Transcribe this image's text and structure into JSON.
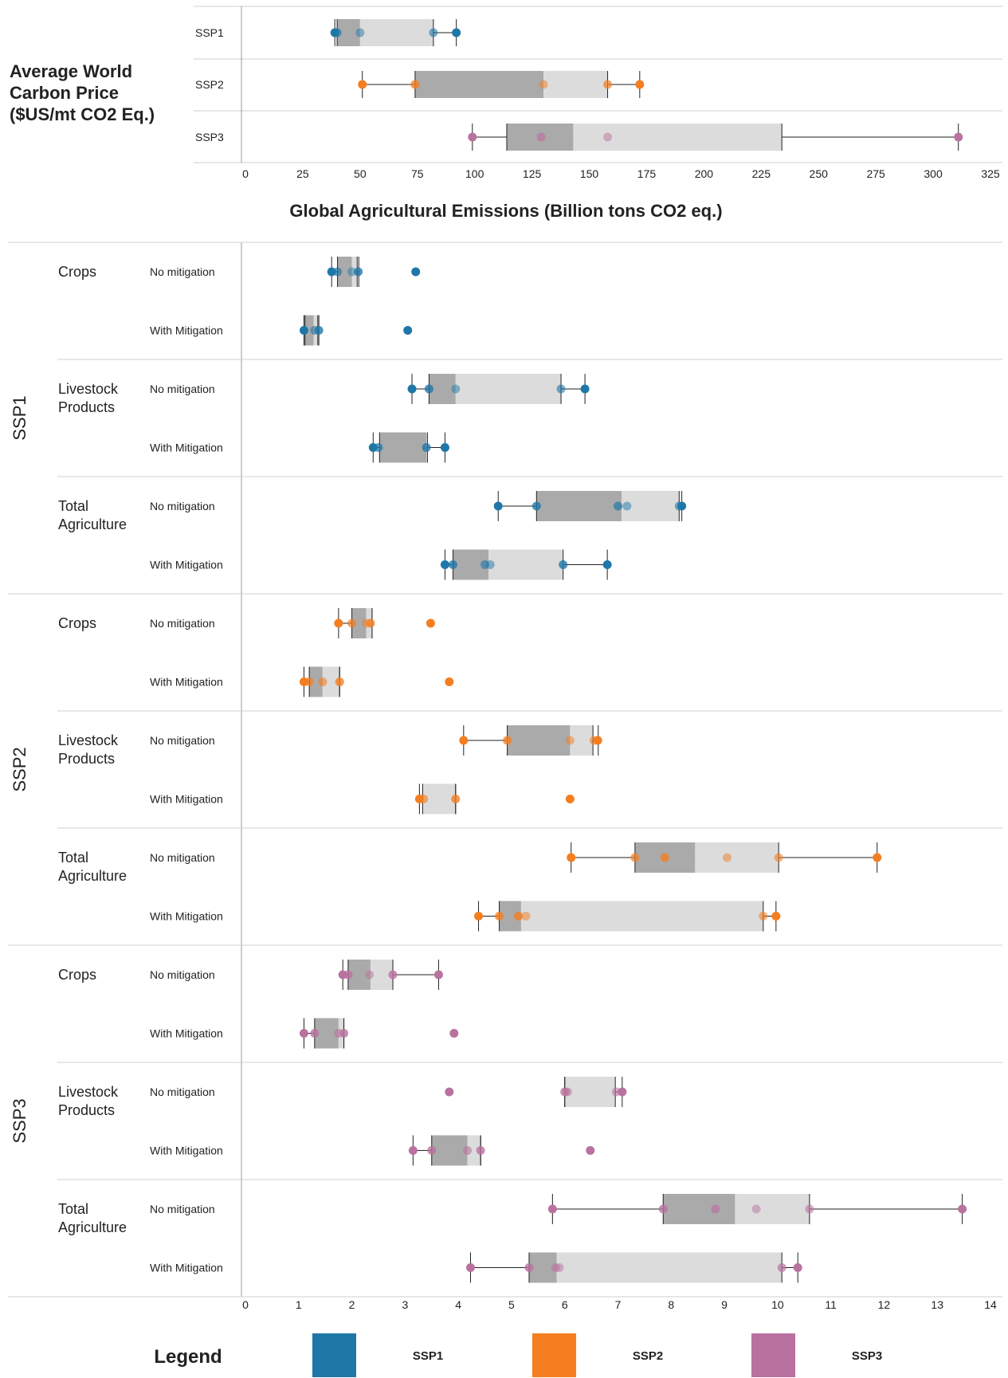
{
  "colors": {
    "SSP1": "#1f77a8",
    "SSP2": "#f47e20",
    "SSP3": "#b9729f"
  },
  "legend": {
    "title": "Legend",
    "items": [
      {
        "label": "SSP1",
        "color": "#1f77a8"
      },
      {
        "label": "SSP2",
        "color": "#f47e20"
      },
      {
        "label": "SSP3",
        "color": "#b9729f"
      }
    ]
  },
  "chart_data": [
    {
      "type": "boxplot",
      "title": "Average World Carbon Price ($US/mt CO2 Eq.)",
      "xlim": [
        0,
        325
      ],
      "xticks": [
        0,
        25,
        50,
        75,
        100,
        125,
        150,
        175,
        200,
        225,
        250,
        275,
        300,
        325
      ],
      "grid": false,
      "rows": [
        {
          "label": "SSP1",
          "series": "SSP1",
          "whisker": [
            39,
            92
          ],
          "q1": 40,
          "median": 50,
          "q3": 82,
          "points": [
            [
              39,
              1
            ],
            [
              40,
              0.7
            ],
            [
              50,
              0.5
            ],
            [
              82,
              0.6
            ],
            [
              92,
              1
            ]
          ]
        },
        {
          "label": "SSP2",
          "series": "SSP2",
          "whisker": [
            51,
            172
          ],
          "q1": 74,
          "median": 130,
          "q3": 158,
          "points": [
            [
              51,
              1
            ],
            [
              74,
              0.8
            ],
            [
              130,
              0.5
            ],
            [
              158,
              0.7
            ],
            [
              172,
              1
            ]
          ]
        },
        {
          "label": "SSP3",
          "series": "SSP3",
          "whisker": [
            99,
            311
          ],
          "q1": 114,
          "median": 143,
          "q3": 234,
          "points": [
            [
              99,
              1
            ],
            [
              129,
              0.7
            ],
            [
              158,
              0.5
            ],
            [
              311,
              1
            ]
          ]
        }
      ]
    },
    {
      "type": "boxplot",
      "title": "Global Agricultural Emissions (Billion tons CO2 eq.)",
      "xlim": [
        0,
        14
      ],
      "xticks": [
        0,
        1,
        2,
        3,
        4,
        5,
        6,
        7,
        8,
        9,
        10,
        11,
        12,
        13,
        14
      ],
      "grid": false,
      "groups": [
        {
          "ssp": "SSP1",
          "categories": [
            {
              "name": "Crops",
              "rows": [
                {
                  "label": "No mitigation",
                  "whisker": [
                    1.62,
                    2.13
                  ],
                  "q1": 1.73,
                  "median": 2.0,
                  "q3": 2.1,
                  "points": [
                    [
                      1.62,
                      1
                    ],
                    [
                      1.73,
                      0.7
                    ],
                    [
                      2.0,
                      0.5
                    ],
                    [
                      2.12,
                      0.8
                    ],
                    [
                      3.2,
                      1
                    ]
                  ]
                },
                {
                  "label": "With Mitigation",
                  "whisker": [
                    1.1,
                    1.38
                  ],
                  "q1": 1.12,
                  "median": 1.28,
                  "q3": 1.36,
                  "points": [
                    [
                      1.1,
                      1
                    ],
                    [
                      1.3,
                      0.6
                    ],
                    [
                      1.38,
                      0.8
                    ],
                    [
                      3.05,
                      1
                    ]
                  ]
                }
              ]
            },
            {
              "name": "Livestock Products",
              "rows": [
                {
                  "label": "No mitigation",
                  "whisker": [
                    3.13,
                    6.38
                  ],
                  "q1": 3.45,
                  "median": 3.95,
                  "q3": 5.93,
                  "points": [
                    [
                      3.13,
                      1
                    ],
                    [
                      3.45,
                      0.8
                    ],
                    [
                      3.95,
                      0.5
                    ],
                    [
                      5.93,
                      0.6
                    ],
                    [
                      6.38,
                      1
                    ]
                  ]
                },
                {
                  "label": "With Mitigation",
                  "whisker": [
                    2.4,
                    3.75
                  ],
                  "q1": 2.52,
                  "median": 3.4,
                  "q3": 3.42,
                  "points": [
                    [
                      2.4,
                      1
                    ],
                    [
                      2.5,
                      0.7
                    ],
                    [
                      3.4,
                      0.8
                    ],
                    [
                      3.75,
                      1
                    ]
                  ]
                }
              ]
            },
            {
              "name": "Total Agriculture",
              "rows": [
                {
                  "label": "No mitigation",
                  "whisker": [
                    4.75,
                    8.2
                  ],
                  "q1": 5.47,
                  "median": 7.07,
                  "q3": 8.15,
                  "points": [
                    [
                      4.75,
                      1
                    ],
                    [
                      5.47,
                      0.8
                    ],
                    [
                      7.0,
                      0.7
                    ],
                    [
                      7.17,
                      0.5
                    ],
                    [
                      8.15,
                      0.6
                    ],
                    [
                      8.2,
                      1
                    ]
                  ]
                },
                {
                  "label": "With Mitigation",
                  "whisker": [
                    3.75,
                    6.8
                  ],
                  "q1": 3.9,
                  "median": 4.57,
                  "q3": 5.97,
                  "points": [
                    [
                      3.75,
                      1
                    ],
                    [
                      3.9,
                      0.8
                    ],
                    [
                      4.5,
                      0.6
                    ],
                    [
                      4.6,
                      0.5
                    ],
                    [
                      5.97,
                      0.8
                    ],
                    [
                      6.8,
                      1
                    ]
                  ]
                }
              ]
            }
          ]
        },
        {
          "ssp": "SSP2",
          "categories": [
            {
              "name": "Crops",
              "rows": [
                {
                  "label": "No mitigation",
                  "whisker": [
                    1.75,
                    2.38
                  ],
                  "q1": 2.0,
                  "median": 2.27,
                  "q3": 2.38,
                  "points": [
                    [
                      1.75,
                      1
                    ],
                    [
                      2.0,
                      0.7
                    ],
                    [
                      2.27,
                      0.5
                    ],
                    [
                      2.35,
                      0.8
                    ],
                    [
                      3.48,
                      1
                    ]
                  ]
                },
                {
                  "label": "With Mitigation",
                  "whisker": [
                    1.1,
                    1.77
                  ],
                  "q1": 1.2,
                  "median": 1.45,
                  "q3": 1.77,
                  "points": [
                    [
                      1.1,
                      1
                    ],
                    [
                      1.2,
                      0.7
                    ],
                    [
                      1.45,
                      0.6
                    ],
                    [
                      1.77,
                      0.8
                    ],
                    [
                      3.83,
                      1
                    ]
                  ]
                }
              ]
            },
            {
              "name": "Livestock Products",
              "rows": [
                {
                  "label": "No mitigation",
                  "whisker": [
                    4.1,
                    6.63
                  ],
                  "q1": 4.92,
                  "median": 6.1,
                  "q3": 6.53,
                  "points": [
                    [
                      4.1,
                      1
                    ],
                    [
                      4.92,
                      0.8
                    ],
                    [
                      6.1,
                      0.5
                    ],
                    [
                      6.55,
                      0.6
                    ],
                    [
                      6.62,
                      1
                    ]
                  ]
                },
                {
                  "label": "With Mitigation",
                  "whisker": [
                    3.27,
                    3.95
                  ],
                  "q1": 3.33,
                  "median": 3.33,
                  "q3": 3.95,
                  "points": [
                    [
                      3.27,
                      1
                    ],
                    [
                      3.35,
                      0.6
                    ],
                    [
                      3.95,
                      0.8
                    ],
                    [
                      6.1,
                      1
                    ]
                  ]
                }
              ]
            },
            {
              "name": "Total Agriculture",
              "rows": [
                {
                  "label": "No mitigation",
                  "whisker": [
                    6.12,
                    11.87
                  ],
                  "q1": 7.32,
                  "median": 8.45,
                  "q3": 10.02,
                  "points": [
                    [
                      6.12,
                      1
                    ],
                    [
                      7.32,
                      0.7
                    ],
                    [
                      7.88,
                      0.8
                    ],
                    [
                      9.05,
                      0.5
                    ],
                    [
                      10.02,
                      0.6
                    ],
                    [
                      11.87,
                      1
                    ]
                  ]
                },
                {
                  "label": "With Mitigation",
                  "whisker": [
                    4.38,
                    9.97
                  ],
                  "q1": 4.77,
                  "median": 5.18,
                  "q3": 9.73,
                  "points": [
                    [
                      4.38,
                      1
                    ],
                    [
                      4.77,
                      0.8
                    ],
                    [
                      5.13,
                      0.8
                    ],
                    [
                      5.27,
                      0.5
                    ],
                    [
                      9.73,
                      0.6
                    ],
                    [
                      9.97,
                      1
                    ]
                  ]
                }
              ]
            }
          ]
        },
        {
          "ssp": "SSP3",
          "categories": [
            {
              "name": "Crops",
              "rows": [
                {
                  "label": "No mitigation",
                  "whisker": [
                    1.83,
                    3.63
                  ],
                  "q1": 1.93,
                  "median": 2.35,
                  "q3": 2.77,
                  "points": [
                    [
                      1.83,
                      1
                    ],
                    [
                      1.93,
                      0.8
                    ],
                    [
                      2.33,
                      0.5
                    ],
                    [
                      2.77,
                      0.8
                    ],
                    [
                      3.63,
                      1
                    ]
                  ]
                },
                {
                  "label": "With Mitigation",
                  "whisker": [
                    1.1,
                    1.85
                  ],
                  "q1": 1.3,
                  "median": 1.75,
                  "q3": 1.85,
                  "points": [
                    [
                      1.1,
                      1
                    ],
                    [
                      1.3,
                      0.8
                    ],
                    [
                      1.75,
                      0.6
                    ],
                    [
                      1.85,
                      0.8
                    ],
                    [
                      3.92,
                      1
                    ]
                  ]
                }
              ]
            },
            {
              "name": "Livestock Products",
              "rows": [
                {
                  "label": "No mitigation",
                  "whisker": [
                    6.0,
                    7.08
                  ],
                  "q1": 6.0,
                  "median": 6.0,
                  "q3": 6.95,
                  "points": [
                    [
                      3.83,
                      1
                    ],
                    [
                      6.0,
                      0.8
                    ],
                    [
                      6.05,
                      0.6
                    ],
                    [
                      6.97,
                      0.6
                    ],
                    [
                      7.08,
                      1
                    ]
                  ]
                },
                {
                  "label": "With Mitigation",
                  "whisker": [
                    3.15,
                    4.42
                  ],
                  "q1": 3.5,
                  "median": 4.17,
                  "q3": 4.42,
                  "points": [
                    [
                      3.15,
                      1
                    ],
                    [
                      3.5,
                      0.8
                    ],
                    [
                      4.17,
                      0.6
                    ],
                    [
                      4.42,
                      0.8
                    ],
                    [
                      6.48,
                      1
                    ]
                  ]
                }
              ]
            },
            {
              "name": "Total Agriculture",
              "rows": [
                {
                  "label": "No mitigation",
                  "whisker": [
                    5.77,
                    13.47
                  ],
                  "q1": 7.85,
                  "median": 9.2,
                  "q3": 10.6,
                  "points": [
                    [
                      5.77,
                      1
                    ],
                    [
                      7.85,
                      0.8
                    ],
                    [
                      8.83,
                      0.7
                    ],
                    [
                      9.6,
                      0.5
                    ],
                    [
                      10.6,
                      0.6
                    ],
                    [
                      13.47,
                      1
                    ]
                  ]
                },
                {
                  "label": "With Mitigation",
                  "whisker": [
                    4.23,
                    10.38
                  ],
                  "q1": 5.33,
                  "median": 5.85,
                  "q3": 10.08,
                  "points": [
                    [
                      4.23,
                      1
                    ],
                    [
                      5.33,
                      0.8
                    ],
                    [
                      5.83,
                      0.6
                    ],
                    [
                      5.9,
                      0.5
                    ],
                    [
                      10.08,
                      0.7
                    ],
                    [
                      10.38,
                      1
                    ]
                  ]
                }
              ]
            }
          ]
        }
      ]
    }
  ]
}
